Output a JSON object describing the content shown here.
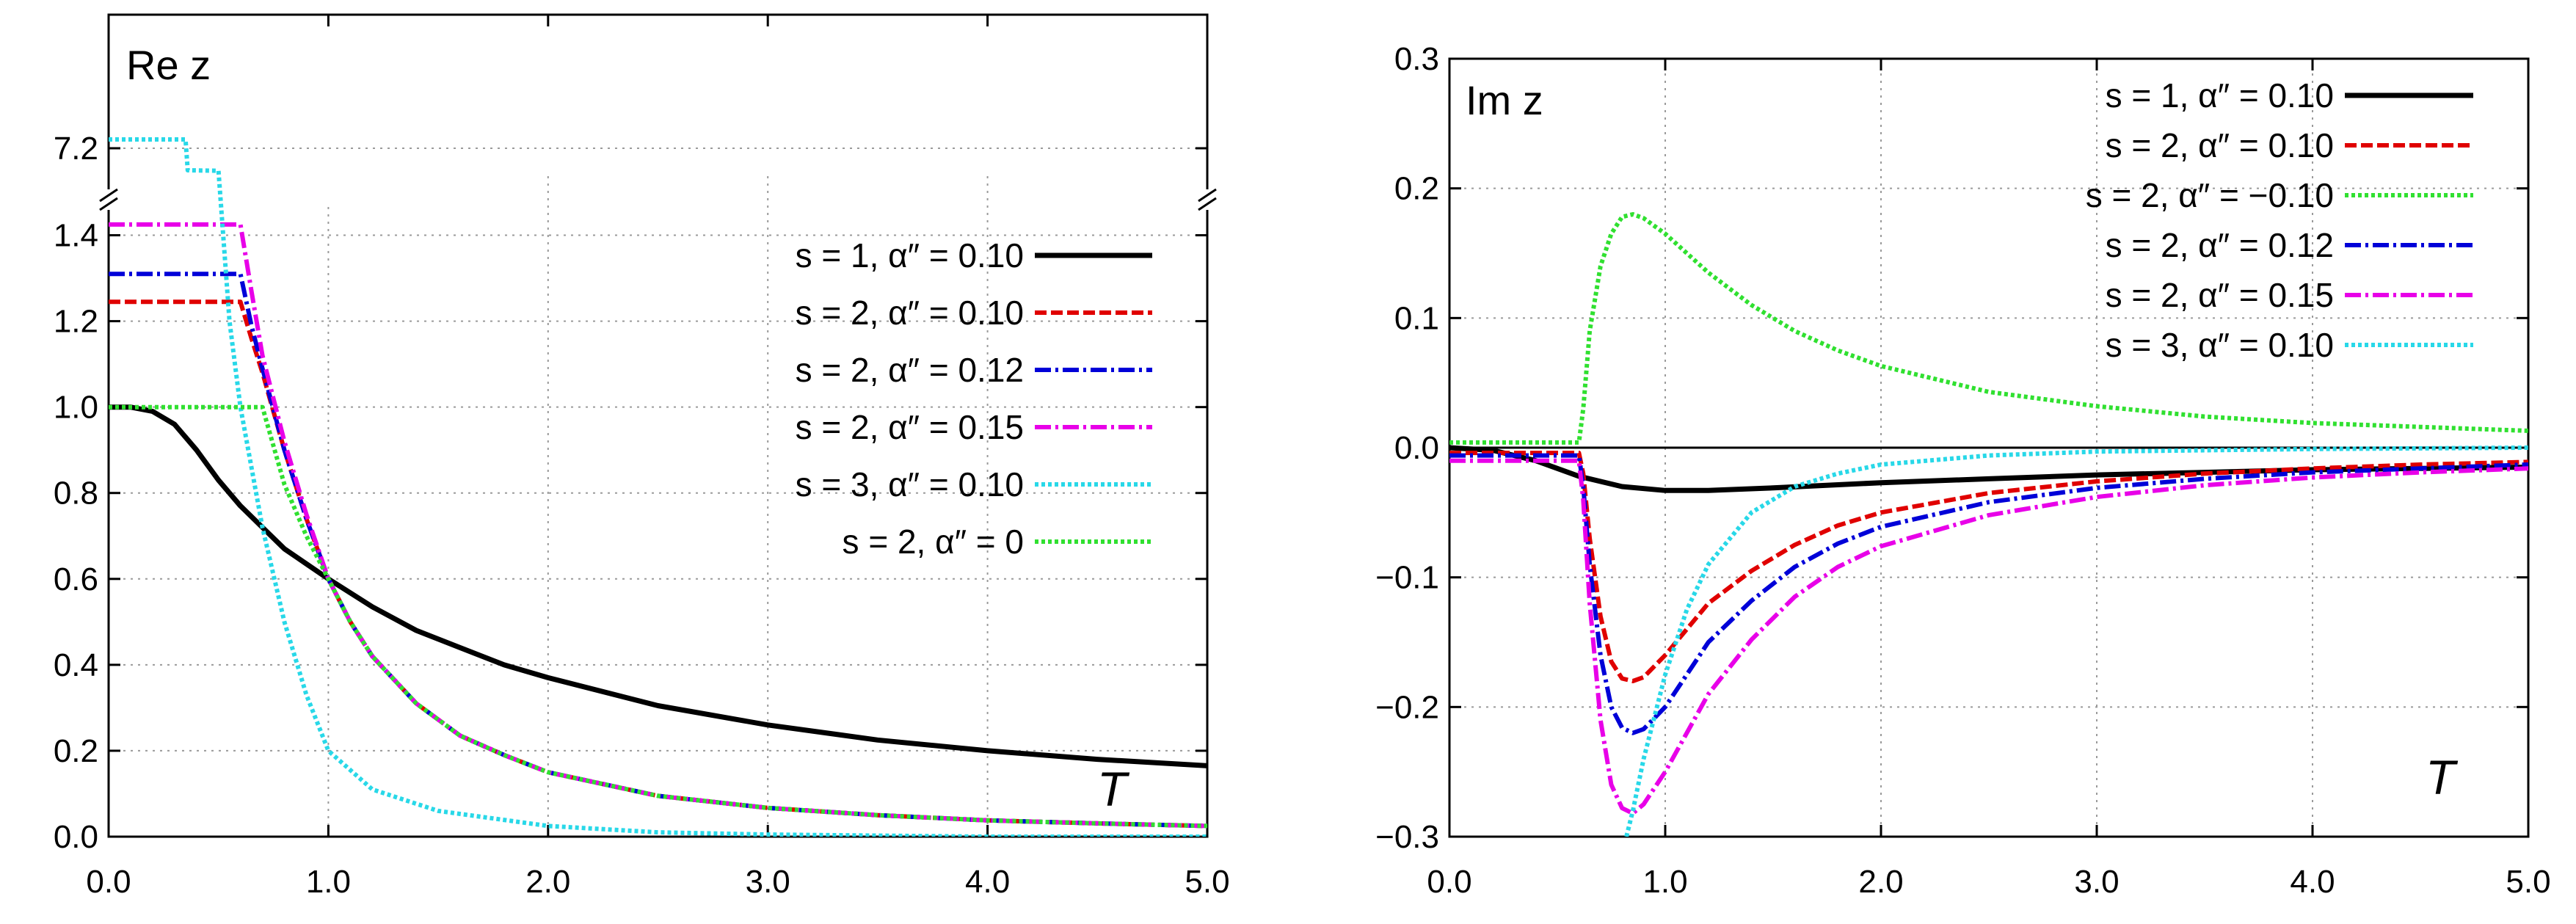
{
  "chart_data": [
    {
      "type": "line",
      "title": "Re z",
      "xlabel": "T",
      "xlim": [
        0,
        5
      ],
      "ylim": [
        0,
        1.5
      ],
      "ylim_broken_top": [
        7.1,
        7.3
      ],
      "axis_break": "y-axis break between 1.5 and 7.1",
      "x_tick_labels": [
        "0.0",
        "1.0",
        "2.0",
        "3.0",
        "4.0",
        "5.0"
      ],
      "x_ticks": [
        0,
        1,
        2,
        3,
        4,
        5
      ],
      "y_tick_labels": [
        "0.0",
        "0.2",
        "0.4",
        "0.6",
        "0.8",
        "1.0",
        "1.2",
        "1.4",
        "7.2"
      ],
      "y_ticks": [
        0,
        0.2,
        0.4,
        0.6,
        0.8,
        1.0,
        1.2,
        1.4,
        7.2
      ],
      "grid": true,
      "legend_position": "top-right",
      "series": [
        {
          "name": "s = 1, α″ = 0.10",
          "color": "#000000",
          "style": "solid",
          "x": [
            0,
            0.1,
            0.2,
            0.3,
            0.4,
            0.5,
            0.6,
            0.7,
            0.8,
            0.9,
            1.0,
            1.2,
            1.4,
            1.6,
            1.8,
            2.0,
            2.5,
            3.0,
            3.5,
            4.0,
            4.5,
            5.0
          ],
          "y": [
            1.0,
            1.0,
            0.99,
            0.96,
            0.9,
            0.83,
            0.77,
            0.72,
            0.67,
            0.635,
            0.6,
            0.535,
            0.48,
            0.44,
            0.4,
            0.37,
            0.305,
            0.26,
            0.225,
            0.2,
            0.18,
            0.165
          ]
        },
        {
          "name": "s = 2, α″ = 0.10",
          "color": "#e00000",
          "style": "dashed",
          "x": [
            0,
            0.6,
            0.65,
            0.7,
            0.8,
            0.9,
            1.0,
            1.1,
            1.2,
            1.4,
            1.6,
            1.8,
            2.0,
            2.5,
            3.0,
            3.5,
            4.0,
            4.5,
            5.0
          ],
          "y": [
            1.245,
            1.245,
            1.16,
            1.08,
            0.9,
            0.74,
            0.6,
            0.5,
            0.42,
            0.31,
            0.235,
            0.19,
            0.15,
            0.095,
            0.067,
            0.05,
            0.038,
            0.031,
            0.025
          ]
        },
        {
          "name": "s = 2, α″ = 0.12",
          "color": "#0000d8",
          "style": "dash-dot",
          "x": [
            0,
            0.6,
            0.65,
            0.7,
            0.8,
            0.9,
            1.0,
            1.1,
            1.2,
            1.4,
            1.6,
            1.8,
            2.0,
            2.5,
            3.0,
            3.5,
            4.0,
            4.5,
            5.0
          ],
          "y": [
            1.31,
            1.31,
            1.19,
            1.09,
            0.9,
            0.74,
            0.6,
            0.5,
            0.42,
            0.31,
            0.235,
            0.19,
            0.15,
            0.095,
            0.067,
            0.05,
            0.038,
            0.031,
            0.025
          ]
        },
        {
          "name": "s = 2, α″ = 0.15",
          "color": "#e800e8",
          "style": "dash-dot",
          "x": [
            0,
            0.6,
            0.65,
            0.7,
            0.8,
            0.9,
            1.0,
            1.1,
            1.2,
            1.4,
            1.6,
            1.8,
            2.0,
            2.5,
            3.0,
            3.5,
            4.0,
            4.5,
            5.0
          ],
          "y": [
            1.425,
            1.425,
            1.27,
            1.12,
            0.92,
            0.75,
            0.6,
            0.5,
            0.42,
            0.31,
            0.235,
            0.19,
            0.15,
            0.095,
            0.067,
            0.05,
            0.038,
            0.031,
            0.025
          ]
        },
        {
          "name": "s = 3, α″ = 0.10",
          "color": "#28d8e8",
          "style": "dotted",
          "x": [
            0,
            0.35,
            0.36,
            0.5,
            0.55,
            0.6,
            0.7,
            0.8,
            0.9,
            1.0,
            1.2,
            1.5,
            2.0,
            2.5,
            3.0,
            4.0,
            5.0
          ],
          "y": [
            7.22,
            7.22,
            7.15,
            1.55,
            1.2,
            1.0,
            0.72,
            0.5,
            0.33,
            0.2,
            0.11,
            0.06,
            0.025,
            0.01,
            0.005,
            0.0,
            0.0
          ]
        },
        {
          "name": "s = 2, α″ = 0",
          "color": "#30e030",
          "style": "dotted",
          "x": [
            0,
            0.7,
            0.8,
            0.9,
            1.0,
            1.1,
            1.2,
            1.4,
            1.6,
            1.8,
            2.0,
            2.5,
            3.0,
            3.5,
            4.0,
            4.5,
            5.0
          ],
          "y": [
            1.0,
            1.0,
            0.82,
            0.7,
            0.6,
            0.5,
            0.42,
            0.31,
            0.235,
            0.19,
            0.15,
            0.095,
            0.067,
            0.05,
            0.038,
            0.031,
            0.025
          ]
        }
      ]
    },
    {
      "type": "line",
      "title": "Im z",
      "xlabel": "T",
      "xlim": [
        0,
        5
      ],
      "ylim": [
        -0.3,
        0.3
      ],
      "x_tick_labels": [
        "0.0",
        "1.0",
        "2.0",
        "3.0",
        "4.0",
        "5.0"
      ],
      "x_ticks": [
        0,
        1,
        2,
        3,
        4,
        5
      ],
      "y_tick_labels": [
        "0.3",
        "0.2",
        "0.1",
        "0.0",
        "−0.1",
        "−0.2",
        "−0.3"
      ],
      "y_ticks": [
        0.3,
        0.2,
        0.1,
        0.0,
        -0.1,
        -0.2,
        -0.3
      ],
      "grid": true,
      "legend_position": "top-right",
      "series": [
        {
          "name": "s = 1, α″ = 0.10",
          "color": "#000000",
          "style": "solid",
          "x": [
            0,
            0.2,
            0.4,
            0.6,
            0.8,
            1.0,
            1.2,
            1.5,
            2.0,
            2.5,
            3.0,
            3.5,
            4.0,
            4.5,
            5.0
          ],
          "y": [
            0.0,
            -0.002,
            -0.01,
            -0.022,
            -0.03,
            -0.033,
            -0.033,
            -0.031,
            -0.027,
            -0.024,
            -0.021,
            -0.019,
            -0.017,
            -0.016,
            -0.015
          ]
        },
        {
          "name": "s = 2, α″ = 0.10",
          "color": "#e00000",
          "style": "dashed",
          "x": [
            0,
            0.6,
            0.62,
            0.65,
            0.7,
            0.75,
            0.8,
            0.85,
            0.9,
            1.0,
            1.1,
            1.2,
            1.4,
            1.6,
            1.8,
            2.0,
            2.5,
            3.0,
            3.5,
            4.0,
            4.5,
            5.0
          ],
          "y": [
            -0.004,
            -0.004,
            -0.02,
            -0.07,
            -0.13,
            -0.165,
            -0.178,
            -0.18,
            -0.177,
            -0.16,
            -0.14,
            -0.12,
            -0.095,
            -0.075,
            -0.06,
            -0.05,
            -0.035,
            -0.026,
            -0.02,
            -0.016,
            -0.013,
            -0.011
          ]
        },
        {
          "name": "s = 2, α″ = −0.10",
          "color": "#30e030",
          "style": "dotted",
          "x": [
            0,
            0.6,
            0.62,
            0.65,
            0.7,
            0.75,
            0.8,
            0.85,
            0.9,
            1.0,
            1.1,
            1.2,
            1.4,
            1.6,
            1.8,
            2.0,
            2.5,
            3.0,
            3.5,
            4.0,
            4.5,
            5.0
          ],
          "y": [
            0.004,
            0.004,
            0.03,
            0.09,
            0.14,
            0.165,
            0.178,
            0.18,
            0.177,
            0.165,
            0.15,
            0.135,
            0.11,
            0.09,
            0.075,
            0.063,
            0.043,
            0.032,
            0.024,
            0.019,
            0.016,
            0.013
          ]
        },
        {
          "name": "s = 2, α″ = 0.12",
          "color": "#0000d8",
          "style": "dash-dot",
          "x": [
            0,
            0.6,
            0.62,
            0.65,
            0.7,
            0.75,
            0.8,
            0.85,
            0.9,
            1.0,
            1.1,
            1.2,
            1.4,
            1.6,
            1.8,
            2.0,
            2.5,
            3.0,
            3.5,
            4.0,
            4.5,
            5.0
          ],
          "y": [
            -0.006,
            -0.006,
            -0.03,
            -0.09,
            -0.16,
            -0.2,
            -0.216,
            -0.22,
            -0.217,
            -0.2,
            -0.175,
            -0.15,
            -0.118,
            -0.092,
            -0.074,
            -0.061,
            -0.042,
            -0.031,
            -0.024,
            -0.019,
            -0.016,
            -0.013
          ]
        },
        {
          "name": "s = 2, α″ = 0.15",
          "color": "#e800e8",
          "style": "dash-dot",
          "x": [
            0,
            0.6,
            0.62,
            0.65,
            0.7,
            0.75,
            0.8,
            0.85,
            0.9,
            1.0,
            1.1,
            1.2,
            1.4,
            1.6,
            1.8,
            2.0,
            2.5,
            3.0,
            3.5,
            4.0,
            4.5,
            5.0
          ],
          "y": [
            -0.01,
            -0.01,
            -0.04,
            -0.12,
            -0.21,
            -0.26,
            -0.278,
            -0.282,
            -0.275,
            -0.25,
            -0.22,
            -0.19,
            -0.148,
            -0.115,
            -0.092,
            -0.076,
            -0.052,
            -0.038,
            -0.029,
            -0.023,
            -0.019,
            -0.016
          ]
        },
        {
          "name": "s = 3, α″ = 0.10",
          "color": "#28d8e8",
          "style": "dotted",
          "x": [
            0.82,
            0.85,
            0.9,
            1.0,
            1.1,
            1.2,
            1.4,
            1.6,
            1.8,
            2.0,
            2.5,
            3.0,
            3.5,
            4.0,
            4.5,
            5.0
          ],
          "y": [
            -0.3,
            -0.28,
            -0.24,
            -0.175,
            -0.125,
            -0.09,
            -0.05,
            -0.03,
            -0.02,
            -0.013,
            -0.006,
            -0.003,
            -0.002,
            -0.001,
            -0.0005,
            0.0
          ]
        }
      ]
    }
  ]
}
